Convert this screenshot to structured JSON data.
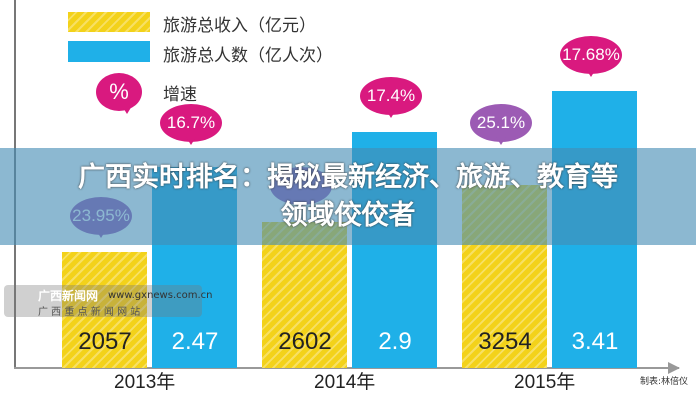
{
  "chart_data": {
    "type": "bar",
    "categories": [
      "2013年",
      "2014年",
      "2015年"
    ],
    "series": [
      {
        "name": "旅游总收入（亿元）",
        "values": [
          2057,
          2602,
          3254
        ],
        "growth": [
          "23.95%",
          null,
          "25.1%"
        ],
        "color": "#f3d21a"
      },
      {
        "name": "旅游总人数（亿人次）",
        "values": [
          2.47,
          2.9,
          3.41
        ],
        "growth": [
          "16.7%",
          "17.4%",
          "17.68%"
        ],
        "color": "#1fb0e8"
      }
    ],
    "value_labels": [
      [
        "2057",
        "2602",
        "3254"
      ],
      [
        "2.47",
        "2.9",
        "3.41"
      ]
    ],
    "legend": [
      "旅游总收入（亿元）",
      "旅游总人数（亿人次）",
      "增速"
    ],
    "legend_bubble": "%",
    "credit": "制表:林倍仪"
  },
  "banner": {
    "line1": "广西实时排名：揭秘最新经济、旅游、教育等",
    "line2": "领域佼佼者"
  },
  "watermark": {
    "name": "广西新闻网",
    "url": "www.gxnews.com.cn",
    "tagline": "广 西 重 点 新 闻 网 站"
  }
}
